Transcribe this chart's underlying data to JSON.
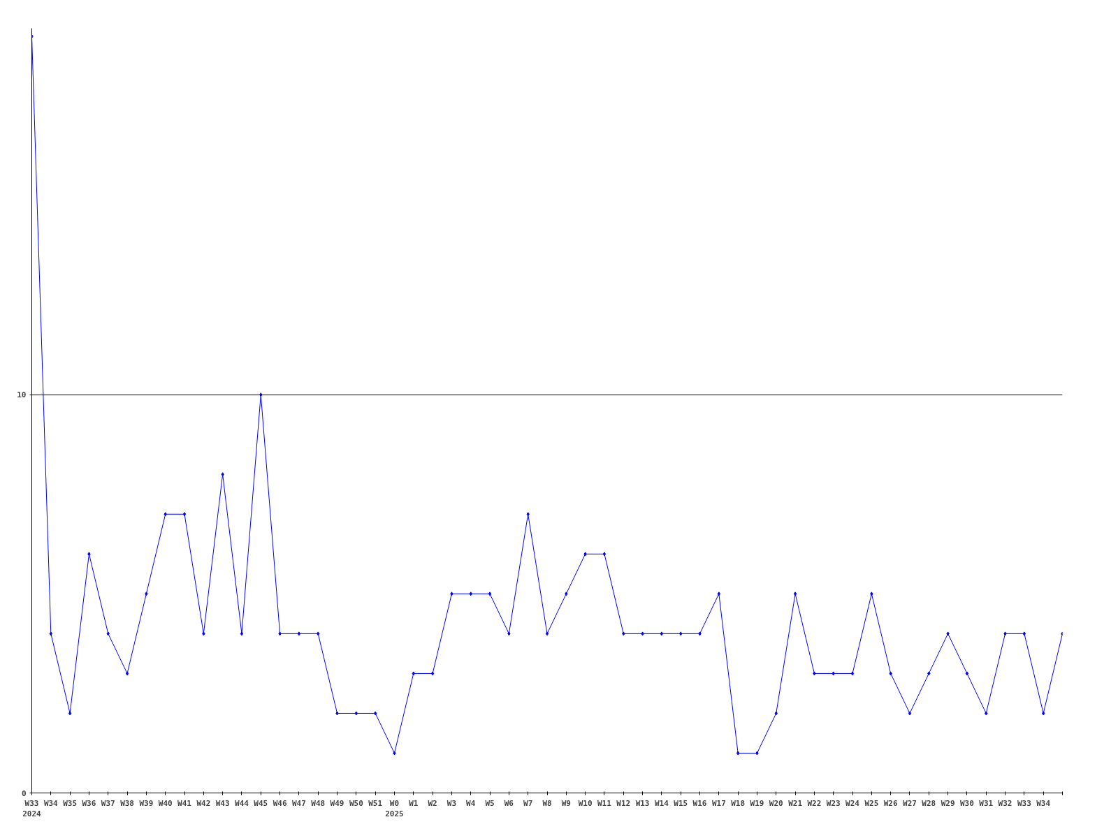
{
  "chart_data": {
    "type": "line",
    "categories": [
      "W33\n2024",
      "W34",
      "W35",
      "W36",
      "W37",
      "W38",
      "W39",
      "W40",
      "W41",
      "W42",
      "W43",
      "W44",
      "W45",
      "W46",
      "W47",
      "W48",
      "W49",
      "W50",
      "W51",
      "W0\n2025",
      "W1",
      "W2",
      "W3",
      "W4",
      "W5",
      "W6",
      "W7",
      "W8",
      "W9",
      "W10",
      "W11",
      "W12",
      "W13",
      "W14",
      "W15",
      "W16",
      "W17",
      "W18",
      "W19",
      "W20",
      "W21",
      "W22",
      "W23",
      "W24",
      "W25",
      "W26",
      "W27",
      "W28",
      "W29",
      "W30",
      "W31",
      "W32",
      "W33",
      "W34",
      null
    ],
    "series": [
      {
        "color": "#0000ff",
        "values": [
          19,
          4,
          2,
          6,
          4,
          3,
          5,
          7,
          7,
          4,
          8,
          4,
          10,
          4,
          4,
          4,
          2,
          2,
          2,
          1,
          3,
          3,
          5,
          5,
          5,
          4,
          7,
          4,
          5,
          6,
          6,
          4,
          4,
          4,
          4,
          4,
          5,
          1,
          1,
          2,
          5,
          3,
          3,
          3,
          5,
          3,
          2,
          3,
          4,
          3,
          2,
          4,
          4,
          2,
          4
        ]
      }
    ],
    "ylim": [
      0,
      19.2
    ],
    "yticks": [
      0,
      10
    ],
    "grid": "y",
    "marker": "diamond",
    "line_style": "solid"
  }
}
